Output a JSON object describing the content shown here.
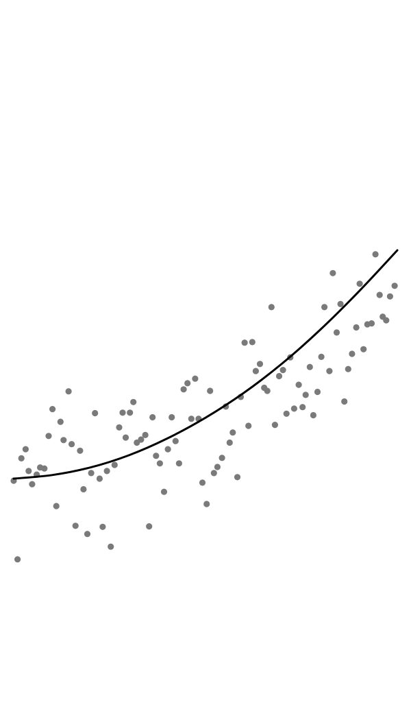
{
  "chart_data": {
    "type": "scatter",
    "title": "",
    "xlabel": "",
    "ylabel": "",
    "grid": false,
    "xlim": [
      0,
      100
    ],
    "ylim": [
      0,
      100
    ],
    "colors": {
      "points": "#7a7a7a",
      "fit": "#000000",
      "background": "#ffffff"
    },
    "points": [
      {
        "x": 0.0,
        "y": 29.6
      },
      {
        "x": 2.0,
        "y": 34.0
      },
      {
        "x": 3.1,
        "y": 35.8
      },
      {
        "x": 1.0,
        "y": 14.1
      },
      {
        "x": 3.9,
        "y": 31.5
      },
      {
        "x": 4.8,
        "y": 28.9
      },
      {
        "x": 6.0,
        "y": 30.8
      },
      {
        "x": 6.9,
        "y": 32.2
      },
      {
        "x": 8.0,
        "y": 32.0
      },
      {
        "x": 9.1,
        "y": 38.4
      },
      {
        "x": 10.1,
        "y": 43.7
      },
      {
        "x": 11.1,
        "y": 24.6
      },
      {
        "x": 12.2,
        "y": 41.2
      },
      {
        "x": 13.0,
        "y": 37.6
      },
      {
        "x": 14.3,
        "y": 47.2
      },
      {
        "x": 15.1,
        "y": 36.8
      },
      {
        "x": 16.1,
        "y": 20.7
      },
      {
        "x": 17.3,
        "y": 35.5
      },
      {
        "x": 18.2,
        "y": 27.9
      },
      {
        "x": 19.2,
        "y": 19.1
      },
      {
        "x": 20.2,
        "y": 31.1
      },
      {
        "x": 21.2,
        "y": 42.9
      },
      {
        "x": 22.4,
        "y": 30.0
      },
      {
        "x": 23.2,
        "y": 20.5
      },
      {
        "x": 24.3,
        "y": 31.5
      },
      {
        "x": 25.3,
        "y": 16.6
      },
      {
        "x": 26.3,
        "y": 32.7
      },
      {
        "x": 27.5,
        "y": 40.1
      },
      {
        "x": 28.4,
        "y": 43.0
      },
      {
        "x": 29.2,
        "y": 38.1
      },
      {
        "x": 30.3,
        "y": 43.0
      },
      {
        "x": 31.2,
        "y": 45.1
      },
      {
        "x": 32.1,
        "y": 37.1
      },
      {
        "x": 33.2,
        "y": 37.7
      },
      {
        "x": 34.3,
        "y": 38.6
      },
      {
        "x": 35.3,
        "y": 20.6
      },
      {
        "x": 36.2,
        "y": 42.1
      },
      {
        "x": 37.1,
        "y": 34.5
      },
      {
        "x": 38.1,
        "y": 33.0
      },
      {
        "x": 39.2,
        "y": 27.4
      },
      {
        "x": 40.2,
        "y": 35.8
      },
      {
        "x": 41.2,
        "y": 42.1
      },
      {
        "x": 42.2,
        "y": 37.4
      },
      {
        "x": 43.1,
        "y": 33.0
      },
      {
        "x": 44.3,
        "y": 47.6
      },
      {
        "x": 45.3,
        "y": 48.8
      },
      {
        "x": 46.3,
        "y": 41.8
      },
      {
        "x": 47.3,
        "y": 49.7
      },
      {
        "x": 48.2,
        "y": 41.8
      },
      {
        "x": 49.2,
        "y": 29.2
      },
      {
        "x": 50.3,
        "y": 25.0
      },
      {
        "x": 51.2,
        "y": 47.3
      },
      {
        "x": 52.2,
        "y": 31.1
      },
      {
        "x": 53.1,
        "y": 32.3
      },
      {
        "x": 54.3,
        "y": 34.1
      },
      {
        "x": 55.3,
        "y": 44.2
      },
      {
        "x": 56.3,
        "y": 37.1
      },
      {
        "x": 57.1,
        "y": 39.1
      },
      {
        "x": 58.3,
        "y": 30.3
      },
      {
        "x": 59.2,
        "y": 46.1
      },
      {
        "x": 60.2,
        "y": 56.8
      },
      {
        "x": 61.2,
        "y": 40.4
      },
      {
        "x": 62.2,
        "y": 56.9
      },
      {
        "x": 63.1,
        "y": 51.2
      },
      {
        "x": 64.2,
        "y": 52.6
      },
      {
        "x": 65.3,
        "y": 47.9
      },
      {
        "x": 66.1,
        "y": 47.3
      },
      {
        "x": 67.2,
        "y": 63.8
      },
      {
        "x": 68.1,
        "y": 40.6
      },
      {
        "x": 69.2,
        "y": 50.2
      },
      {
        "x": 70.2,
        "y": 51.4
      },
      {
        "x": 71.1,
        "y": 42.8
      },
      {
        "x": 72.1,
        "y": 53.9
      },
      {
        "x": 73.1,
        "y": 43.8
      },
      {
        "x": 74.3,
        "y": 48.5
      },
      {
        "x": 75.3,
        "y": 44.1
      },
      {
        "x": 76.1,
        "y": 46.5
      },
      {
        "x": 77.2,
        "y": 52.0
      },
      {
        "x": 78.1,
        "y": 42.5
      },
      {
        "x": 79.2,
        "y": 47.1
      },
      {
        "x": 80.2,
        "y": 54.0
      },
      {
        "x": 81.0,
        "y": 63.8
      },
      {
        "x": 82.3,
        "y": 51.2
      },
      {
        "x": 83.2,
        "y": 70.5
      },
      {
        "x": 84.2,
        "y": 58.8
      },
      {
        "x": 85.2,
        "y": 64.4
      },
      {
        "x": 86.2,
        "y": 45.2
      },
      {
        "x": 87.2,
        "y": 51.6
      },
      {
        "x": 88.2,
        "y": 54.6
      },
      {
        "x": 89.3,
        "y": 59.8
      },
      {
        "x": 90.2,
        "y": 68.4
      },
      {
        "x": 91.2,
        "y": 55.5
      },
      {
        "x": 92.2,
        "y": 60.4
      },
      {
        "x": 93.3,
        "y": 60.6
      },
      {
        "x": 94.3,
        "y": 74.2
      },
      {
        "x": 95.4,
        "y": 66.2
      },
      {
        "x": 96.2,
        "y": 61.9
      },
      {
        "x": 97.1,
        "y": 61.2
      },
      {
        "x": 98.1,
        "y": 65.9
      },
      {
        "x": 99.3,
        "y": 68.0
      }
    ],
    "fit_line": {
      "kind": "quadratic",
      "x": [
        0,
        10,
        20,
        30,
        40,
        50,
        60,
        70,
        80,
        90,
        100
      ],
      "y": [
        30.0,
        30.7,
        32.2,
        34.6,
        37.9,
        42.0,
        46.9,
        52.7,
        59.4,
        66.9,
        75.0
      ]
    }
  }
}
